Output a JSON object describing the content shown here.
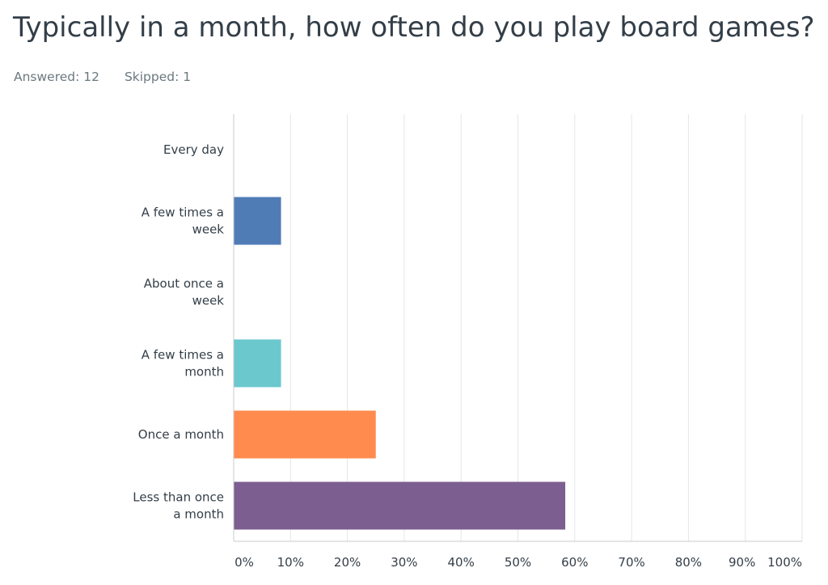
{
  "title": "Typically in a month, how often do you play board games?",
  "stats": {
    "answered": "Answered: 12",
    "skipped": "Skipped: 1"
  },
  "colors": {
    "gridline": "#e4e6e7",
    "axis": "#c8cbcd",
    "text": "#333e48",
    "muted": "#6b787f"
  },
  "chart_data": {
    "type": "bar",
    "orientation": "horizontal",
    "categories": [
      [
        "Every day"
      ],
      [
        "A few times a",
        "week"
      ],
      [
        "About once a",
        "week"
      ],
      [
        "A few times a",
        "month"
      ],
      [
        "Once a month"
      ],
      [
        "Less than once",
        "a month"
      ]
    ],
    "values": [
      0,
      8.33,
      0,
      8.33,
      25.0,
      58.33
    ],
    "bar_colors": [
      "#2f6ed7",
      "#507cb6",
      "#7a9b4a",
      "#6bc8cd",
      "#ff8b4f",
      "#7d5e90"
    ],
    "x_ticks": [
      "0%",
      "10%",
      "20%",
      "30%",
      "40%",
      "50%",
      "60%",
      "70%",
      "80%",
      "90%",
      "100%"
    ],
    "xlim": [
      0,
      100
    ],
    "grid": true,
    "legend": "none"
  }
}
